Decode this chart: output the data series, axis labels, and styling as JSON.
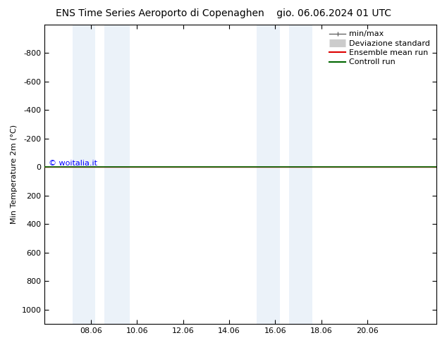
{
  "title_left": "ENS Time Series Aeroporto di Copenaghen",
  "title_right": "gio. 06.06.2024 01 UTC",
  "ylabel": "Min Temperature 2m (°C)",
  "yticks": [
    -800,
    -600,
    -400,
    -200,
    0,
    200,
    400,
    600,
    800,
    1000
  ],
  "xlim": [
    0,
    17.0
  ],
  "ylim_top": 1100,
  "ylim_bottom": -1000,
  "xtick_labels": [
    "08.06",
    "10.06",
    "12.06",
    "14.06",
    "16.06",
    "18.06",
    "20.06"
  ],
  "xtick_positions": [
    2,
    4,
    6,
    8,
    10,
    12,
    14
  ],
  "watermark": "© woitalia.it",
  "bg_color": "#ffffff",
  "shade_color": "#dce9f5",
  "shade_alpha": 0.55,
  "shade_bands": [
    [
      1.2,
      2.2
    ],
    [
      2.6,
      3.7
    ],
    [
      9.2,
      10.2
    ],
    [
      10.6,
      11.6
    ]
  ],
  "green_line_color": "#006600",
  "red_line_color": "#dd0000",
  "legend_entries": [
    {
      "label": "min/max",
      "color": "#666666",
      "lw": 1.0,
      "type": "minmax"
    },
    {
      "label": "Deviazione standard",
      "color": "#cccccc",
      "lw": 8,
      "type": "std"
    },
    {
      "label": "Ensemble mean run",
      "color": "#dd0000",
      "lw": 1.5,
      "type": "line"
    },
    {
      "label": "Controll run",
      "color": "#006600",
      "lw": 1.5,
      "type": "line"
    }
  ],
  "title_fontsize": 10,
  "axis_fontsize": 8,
  "tick_fontsize": 8,
  "legend_fontsize": 8
}
